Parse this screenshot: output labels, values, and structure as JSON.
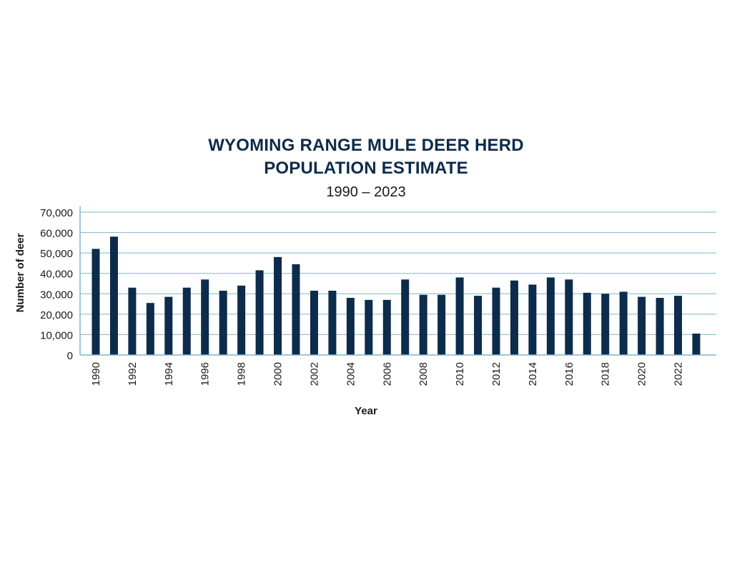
{
  "chart_data": {
    "type": "bar",
    "title_lines": [
      "WYOMING RANGE MULE DEER HERD",
      "POPULATION ESTIMATE"
    ],
    "subtitle": "1990 – 2023",
    "xlabel": "Year",
    "ylabel": "Number of deer",
    "ylim": [
      0,
      70000
    ],
    "yticks": [
      0,
      10000,
      20000,
      30000,
      40000,
      50000,
      60000,
      70000
    ],
    "ytick_labels": [
      "0",
      "10,000",
      "20,000",
      "30,000",
      "40,000",
      "50,000",
      "60,000",
      "70,000"
    ],
    "grid": true,
    "bar_color": "#0d2b4a",
    "grid_color": "#7fb7c9",
    "categories": [
      "1990",
      "1991",
      "1992",
      "1993",
      "1994",
      "1995",
      "1996",
      "1997",
      "1998",
      "1999",
      "2000",
      "2001",
      "2002",
      "2003",
      "2004",
      "2005",
      "2006",
      "2007",
      "2008",
      "2009",
      "2010",
      "2011",
      "2012",
      "2013",
      "2014",
      "2015",
      "2016",
      "2017",
      "2018",
      "2019",
      "2020",
      "2021",
      "2022",
      "2023"
    ],
    "xtick_labels": [
      "1990",
      "",
      "1992",
      "",
      "1994",
      "",
      "1996",
      "",
      "1998",
      "",
      "2000",
      "",
      "2002",
      "",
      "2004",
      "",
      "2006",
      "",
      "2008",
      "",
      "2010",
      "",
      "2012",
      "",
      "2014",
      "",
      "2016",
      "",
      "2018",
      "",
      "2020",
      "",
      "2022",
      ""
    ],
    "values": [
      52000,
      58000,
      33000,
      25500,
      28500,
      33000,
      37000,
      31500,
      34000,
      41500,
      48000,
      44500,
      31500,
      31500,
      28000,
      27000,
      27000,
      37000,
      29500,
      29500,
      38000,
      29000,
      33000,
      36500,
      34500,
      38000,
      37000,
      30500,
      30000,
      31000,
      28500,
      28000,
      29000,
      10500
    ]
  }
}
